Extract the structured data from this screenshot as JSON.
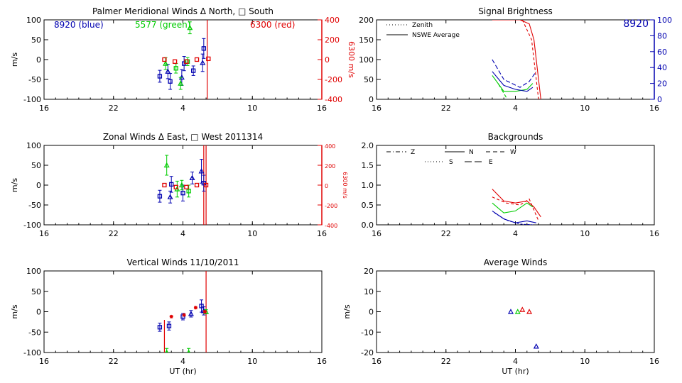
{
  "chart_data": [
    {
      "id": "meridional",
      "type": "scatter",
      "title": "Palmer Meridional Winds Δ North, □ South",
      "xlabel": "",
      "ylabel": "m/s",
      "xlim": [
        16,
        40
      ],
      "xticks": [
        16,
        22,
        28,
        34,
        40
      ],
      "xticklabels": [
        "16",
        "22",
        "4",
        "10",
        "16"
      ],
      "ylim": [
        -100,
        100
      ],
      "yticks": [
        -100,
        -50,
        0,
        50,
        100
      ],
      "yticklabels": [
        "-100",
        "-50",
        "0",
        "50",
        "100"
      ],
      "right_axis": {
        "label": "6300 m/s",
        "ylim": [
          -400,
          400
        ],
        "ticks": [
          -400,
          -200,
          0,
          200,
          400
        ],
        "ticklabels": [
          "-400",
          "-200",
          "0",
          "200",
          "400"
        ],
        "color": "#e00000"
      },
      "series_labels": [
        {
          "text": "8920 (blue)",
          "color": "#0000b0"
        },
        {
          "text": "5577 (green)",
          "color": "#00cc00"
        },
        {
          "text": "6300 (red)",
          "color": "#e00000"
        }
      ],
      "series": [
        {
          "name": "8920",
          "color": "#0000b0",
          "points": [
            {
              "x": 26.0,
              "y": -42,
              "err": 15,
              "sym": "square"
            },
            {
              "x": 26.9,
              "y": -55,
              "err": 20,
              "sym": "square"
            },
            {
              "x": 26.7,
              "y": -30,
              "err": 18,
              "sym": "tri"
            },
            {
              "x": 27.9,
              "y": -45,
              "err": 20,
              "sym": "tri"
            },
            {
              "x": 28.1,
              "y": -10,
              "err": 18,
              "sym": "square"
            },
            {
              "x": 28.9,
              "y": -28,
              "err": 12,
              "sym": "square"
            },
            {
              "x": 29.8,
              "y": 28,
              "err": 25,
              "sym": "square"
            },
            {
              "x": 29.7,
              "y": -8,
              "err": 22,
              "sym": "tri"
            }
          ]
        },
        {
          "name": "5577",
          "color": "#00cc00",
          "points": [
            {
              "x": 26.5,
              "y": -10,
              "err": 15,
              "sym": "tri"
            },
            {
              "x": 27.4,
              "y": -22,
              "err": 12,
              "sym": "square"
            },
            {
              "x": 27.8,
              "y": -60,
              "err": 15,
              "sym": "tri"
            },
            {
              "x": 28.6,
              "y": 80,
              "err": 15,
              "sym": "tri"
            },
            {
              "x": 28.4,
              "y": -5,
              "err": 10,
              "sym": "square"
            }
          ]
        },
        {
          "name": "6300",
          "color": "#e00000",
          "points": [
            {
              "x": 26.4,
              "y": 0,
              "err": 0,
              "sym": "square"
            },
            {
              "x": 27.3,
              "y": -5,
              "err": 0,
              "sym": "square"
            },
            {
              "x": 28.3,
              "y": -5,
              "err": 0,
              "sym": "square"
            },
            {
              "x": 29.2,
              "y": 0,
              "err": 0,
              "sym": "square"
            },
            {
              "x": 30.2,
              "y": 2,
              "err": 0,
              "sym": "square"
            }
          ]
        }
      ],
      "vlines": [
        {
          "x": 30.1,
          "color": "#e00000"
        }
      ]
    },
    {
      "id": "zonal",
      "type": "scatter",
      "title": "Zonal Winds Δ East, □ West 2011314",
      "xlabel": "",
      "ylabel": "m/s",
      "xlim": [
        16,
        40
      ],
      "xticks": [
        16,
        22,
        28,
        34,
        40
      ],
      "xticklabels": [
        "16",
        "22",
        "4",
        "10",
        "16"
      ],
      "ylim": [
        -100,
        100
      ],
      "yticks": [
        -100,
        -50,
        0,
        50,
        100
      ],
      "yticklabels": [
        "-100",
        "-50",
        "0",
        "50",
        "100"
      ],
      "right_axis": {
        "label": "6300 m/s",
        "ylim": [
          -400,
          400
        ],
        "ticks": [
          -400,
          -200,
          0,
          200,
          400
        ],
        "ticklabels": [
          "-400",
          "-200",
          "0",
          "200",
          "400"
        ],
        "color": "#e00000"
      },
      "series": [
        {
          "name": "8920",
          "color": "#0000b0",
          "points": [
            {
              "x": 26.0,
              "y": -28,
              "err": 15,
              "sym": "square"
            },
            {
              "x": 26.9,
              "y": -30,
              "err": 15,
              "sym": "tri"
            },
            {
              "x": 27.0,
              "y": 2,
              "err": 20,
              "sym": "square"
            },
            {
              "x": 28.0,
              "y": -20,
              "err": 20,
              "sym": "square"
            },
            {
              "x": 28.8,
              "y": 18,
              "err": 15,
              "sym": "tri"
            },
            {
              "x": 29.6,
              "y": 35,
              "err": 30,
              "sym": "tri"
            },
            {
              "x": 29.8,
              "y": 5,
              "err": 20,
              "sym": "square"
            }
          ]
        },
        {
          "name": "5577",
          "color": "#00cc00",
          "points": [
            {
              "x": 26.6,
              "y": 50,
              "err": 25,
              "sym": "tri"
            },
            {
              "x": 27.5,
              "y": -10,
              "err": 20,
              "sym": "tri"
            },
            {
              "x": 28.5,
              "y": -15,
              "err": 15,
              "sym": "square"
            },
            {
              "x": 27.9,
              "y": 0,
              "err": 12,
              "sym": "tri"
            }
          ]
        },
        {
          "name": "6300",
          "color": "#e00000",
          "points": [
            {
              "x": 26.4,
              "y": 0,
              "err": 0,
              "sym": "square"
            },
            {
              "x": 27.4,
              "y": -5,
              "err": 0,
              "sym": "square"
            },
            {
              "x": 28.3,
              "y": -5,
              "err": 0,
              "sym": "square"
            },
            {
              "x": 29.2,
              "y": 0,
              "err": 0,
              "sym": "square"
            },
            {
              "x": 30.0,
              "y": 0,
              "err": 0,
              "sym": "square"
            }
          ]
        }
      ],
      "vlines": [
        {
          "x": 29.8,
          "color": "#e00000"
        },
        {
          "x": 30.0,
          "color": "#e00000"
        }
      ]
    },
    {
      "id": "vertical",
      "type": "scatter",
      "title": "Vertical Winds 11/10/2011",
      "xlabel": "UT (hr)",
      "ylabel": "m/s",
      "xlim": [
        16,
        40
      ],
      "xticks": [
        16,
        22,
        28,
        34,
        40
      ],
      "xticklabels": [
        "16",
        "22",
        "4",
        "10",
        "16"
      ],
      "ylim": [
        -100,
        100
      ],
      "yticks": [
        -100,
        -50,
        0,
        50,
        100
      ],
      "yticklabels": [
        "-100",
        "-50",
        "0",
        "50",
        "100"
      ],
      "series": [
        {
          "name": "8920",
          "color": "#0000b0",
          "points": [
            {
              "x": 26.0,
              "y": -38,
              "err": 10,
              "sym": "square"
            },
            {
              "x": 26.8,
              "y": -35,
              "err": 10,
              "sym": "square"
            },
            {
              "x": 28.0,
              "y": -12,
              "err": 8,
              "sym": "square"
            },
            {
              "x": 28.7,
              "y": -5,
              "err": 8,
              "sym": "tri"
            },
            {
              "x": 29.6,
              "y": 14,
              "err": 15,
              "sym": "square"
            },
            {
              "x": 29.8,
              "y": 2,
              "err": 10,
              "sym": "tri"
            }
          ]
        },
        {
          "name": "5577",
          "color": "#00cc00",
          "points": [
            {
              "x": 26.6,
              "y": -100,
              "err": 10,
              "sym": "tri"
            },
            {
              "x": 28.5,
              "y": -100,
              "err": 10,
              "sym": "tri"
            },
            {
              "x": 30.0,
              "y": 0,
              "err": 5,
              "sym": "tri"
            }
          ]
        },
        {
          "name": "6300",
          "color": "#e00000",
          "points": [
            {
              "x": 27.0,
              "y": -12,
              "err": 0,
              "sym": "star"
            },
            {
              "x": 28.1,
              "y": -8,
              "err": 0,
              "sym": "star"
            },
            {
              "x": 29.1,
              "y": 10,
              "err": 0,
              "sym": "star"
            },
            {
              "x": 29.9,
              "y": 0,
              "err": 0,
              "sym": "star"
            }
          ]
        }
      ],
      "vlines": [
        {
          "x": 26.4,
          "color": "#e00000",
          "from": -100,
          "to": -20
        },
        {
          "x": 30.0,
          "color": "#e00000",
          "from": -100,
          "to": 100
        }
      ]
    },
    {
      "id": "brightness",
      "type": "line",
      "title": "Signal Brightness",
      "xlabel": "",
      "ylabel": "",
      "xlim": [
        16,
        40
      ],
      "xticks": [
        16,
        22,
        28,
        34,
        40
      ],
      "xticklabels": [
        "16",
        "22",
        "4",
        "10",
        "16"
      ],
      "ylim": [
        0,
        200
      ],
      "yticks": [
        0,
        50,
        100,
        150,
        200
      ],
      "yticklabels": [
        "0",
        "50",
        "100",
        "150",
        "200"
      ],
      "right_axis": {
        "label": "",
        "ylim": [
          0,
          100
        ],
        "ticks": [
          0,
          20,
          40,
          60,
          80,
          100
        ],
        "ticklabels": [
          "0",
          "20",
          "40",
          "60",
          "80",
          "100"
        ],
        "color": "#0000b0"
      },
      "corner_label": {
        "text": "8920",
        "color": "#0000b0"
      },
      "legend": [
        {
          "label": "Zenith",
          "style": "dotted"
        },
        {
          "label": "NSWE Average",
          "style": "solid"
        }
      ],
      "series": [
        {
          "name": "6300",
          "color": "#e00000",
          "points": [
            [
              26.0,
              200
            ],
            [
              27.2,
              200
            ],
            [
              28.4,
              200
            ],
            [
              29.2,
              190
            ],
            [
              29.6,
              150
            ],
            [
              30.2,
              0
            ]
          ]
        },
        {
          "name": "6300 zenith",
          "color": "#e00000",
          "dash": "4,3",
          "points": [
            [
              28.6,
              200
            ],
            [
              29.4,
              150
            ],
            [
              30.0,
              0
            ]
          ]
        },
        {
          "name": "5577",
          "color": "#00cc00",
          "points": [
            [
              26.0,
              60
            ],
            [
              27.0,
              20
            ],
            [
              28.0,
              20
            ],
            [
              29.0,
              25
            ],
            [
              29.5,
              40
            ]
          ]
        },
        {
          "name": "5577 zenith",
          "color": "#00cc00",
          "dash": "6,3",
          "points": [
            [
              26.5,
              40
            ],
            [
              27.2,
              5
            ]
          ]
        },
        {
          "name": "8920",
          "color": "#0000b0",
          "points": [
            [
              26.0,
              70
            ],
            [
              27.0,
              35
            ],
            [
              28.0,
              25
            ],
            [
              29.0,
              20
            ],
            [
              29.5,
              30
            ]
          ]
        },
        {
          "name": "8920 zenith",
          "color": "#0000b0",
          "dash": "6,3",
          "points": [
            [
              26.0,
              100
            ],
            [
              27.0,
              50
            ],
            [
              28.4,
              30
            ],
            [
              29.2,
              45
            ],
            [
              29.8,
              70
            ]
          ]
        }
      ]
    },
    {
      "id": "backgrounds",
      "type": "line",
      "title": "Backgrounds",
      "xlabel": "",
      "ylabel": "",
      "xlim": [
        16,
        40
      ],
      "xticks": [
        16,
        22,
        28,
        34,
        40
      ],
      "xticklabels": [
        "16",
        "22",
        "4",
        "10",
        "16"
      ],
      "ylim": [
        0,
        2
      ],
      "yticks": [
        0,
        0.5,
        1,
        1.5,
        2
      ],
      "yticklabels": [
        "0.0",
        "0.5",
        "1.0",
        "1.5",
        "2.0"
      ],
      "legend": [
        {
          "label": "Z",
          "style": "dashdot"
        },
        {
          "label": "N",
          "style": "solid"
        },
        {
          "label": "W",
          "style": "dashed"
        },
        {
          "label": "S",
          "style": "dotted"
        },
        {
          "label": "E",
          "style": "longdash"
        }
      ],
      "series": [
        {
          "name": "6300 a",
          "color": "#e00000",
          "points": [
            [
              26.0,
              0.9
            ],
            [
              27.0,
              0.6
            ],
            [
              28.0,
              0.55
            ],
            [
              29.0,
              0.6
            ],
            [
              29.6,
              0.45
            ],
            [
              30.2,
              0.2
            ]
          ]
        },
        {
          "name": "6300 b",
          "color": "#e00000",
          "dash": "4,3",
          "points": [
            [
              26.0,
              0.7
            ],
            [
              27.2,
              0.55
            ],
            [
              28.4,
              0.5
            ],
            [
              29.2,
              0.65
            ],
            [
              30.0,
              0.1
            ]
          ]
        },
        {
          "name": "5577",
          "color": "#00cc00",
          "points": [
            [
              26.0,
              0.55
            ],
            [
              27.0,
              0.3
            ],
            [
              28.0,
              0.35
            ],
            [
              29.0,
              0.55
            ],
            [
              29.5,
              0.45
            ]
          ]
        },
        {
          "name": "8920 a",
          "color": "#0000b0",
          "points": [
            [
              26.0,
              0.35
            ],
            [
              27.0,
              0.15
            ],
            [
              28.0,
              0.05
            ],
            [
              29.0,
              0.1
            ],
            [
              29.8,
              0.05
            ]
          ]
        },
        {
          "name": "8920 b",
          "color": "#0000b0",
          "dash": "3,2",
          "points": [
            [
              26.2,
              0.3
            ],
            [
              27.2,
              0.12
            ],
            [
              28.4,
              0.02
            ],
            [
              29.5,
              0.0
            ]
          ]
        }
      ]
    },
    {
      "id": "average",
      "type": "scatter",
      "title": "Average Winds",
      "xlabel": "UT (hr)",
      "ylabel": "m/s",
      "xlim": [
        16,
        40
      ],
      "xticks": [
        16,
        22,
        28,
        34,
        40
      ],
      "xticklabels": [
        "16",
        "22",
        "4",
        "10",
        "16"
      ],
      "ylim": [
        -20,
        20
      ],
      "yticks": [
        -20,
        -10,
        0,
        10,
        20
      ],
      "yticklabels": [
        "-20",
        "-10",
        "0",
        "10",
        "20"
      ],
      "series": [
        {
          "name": "8920",
          "color": "#0000b0",
          "points": [
            {
              "x": 27.6,
              "y": 0,
              "err": 0,
              "sym": "tri"
            },
            {
              "x": 29.8,
              "y": -17,
              "err": 0,
              "sym": "tri"
            }
          ]
        },
        {
          "name": "5577",
          "color": "#00cc00",
          "points": [
            {
              "x": 28.2,
              "y": 0,
              "err": 0,
              "sym": "tri"
            }
          ]
        },
        {
          "name": "6300",
          "color": "#e00000",
          "points": [
            {
              "x": 28.6,
              "y": 1,
              "err": 0,
              "sym": "tri"
            },
            {
              "x": 29.2,
              "y": 0,
              "err": 0,
              "sym": "tri"
            }
          ]
        }
      ]
    }
  ]
}
